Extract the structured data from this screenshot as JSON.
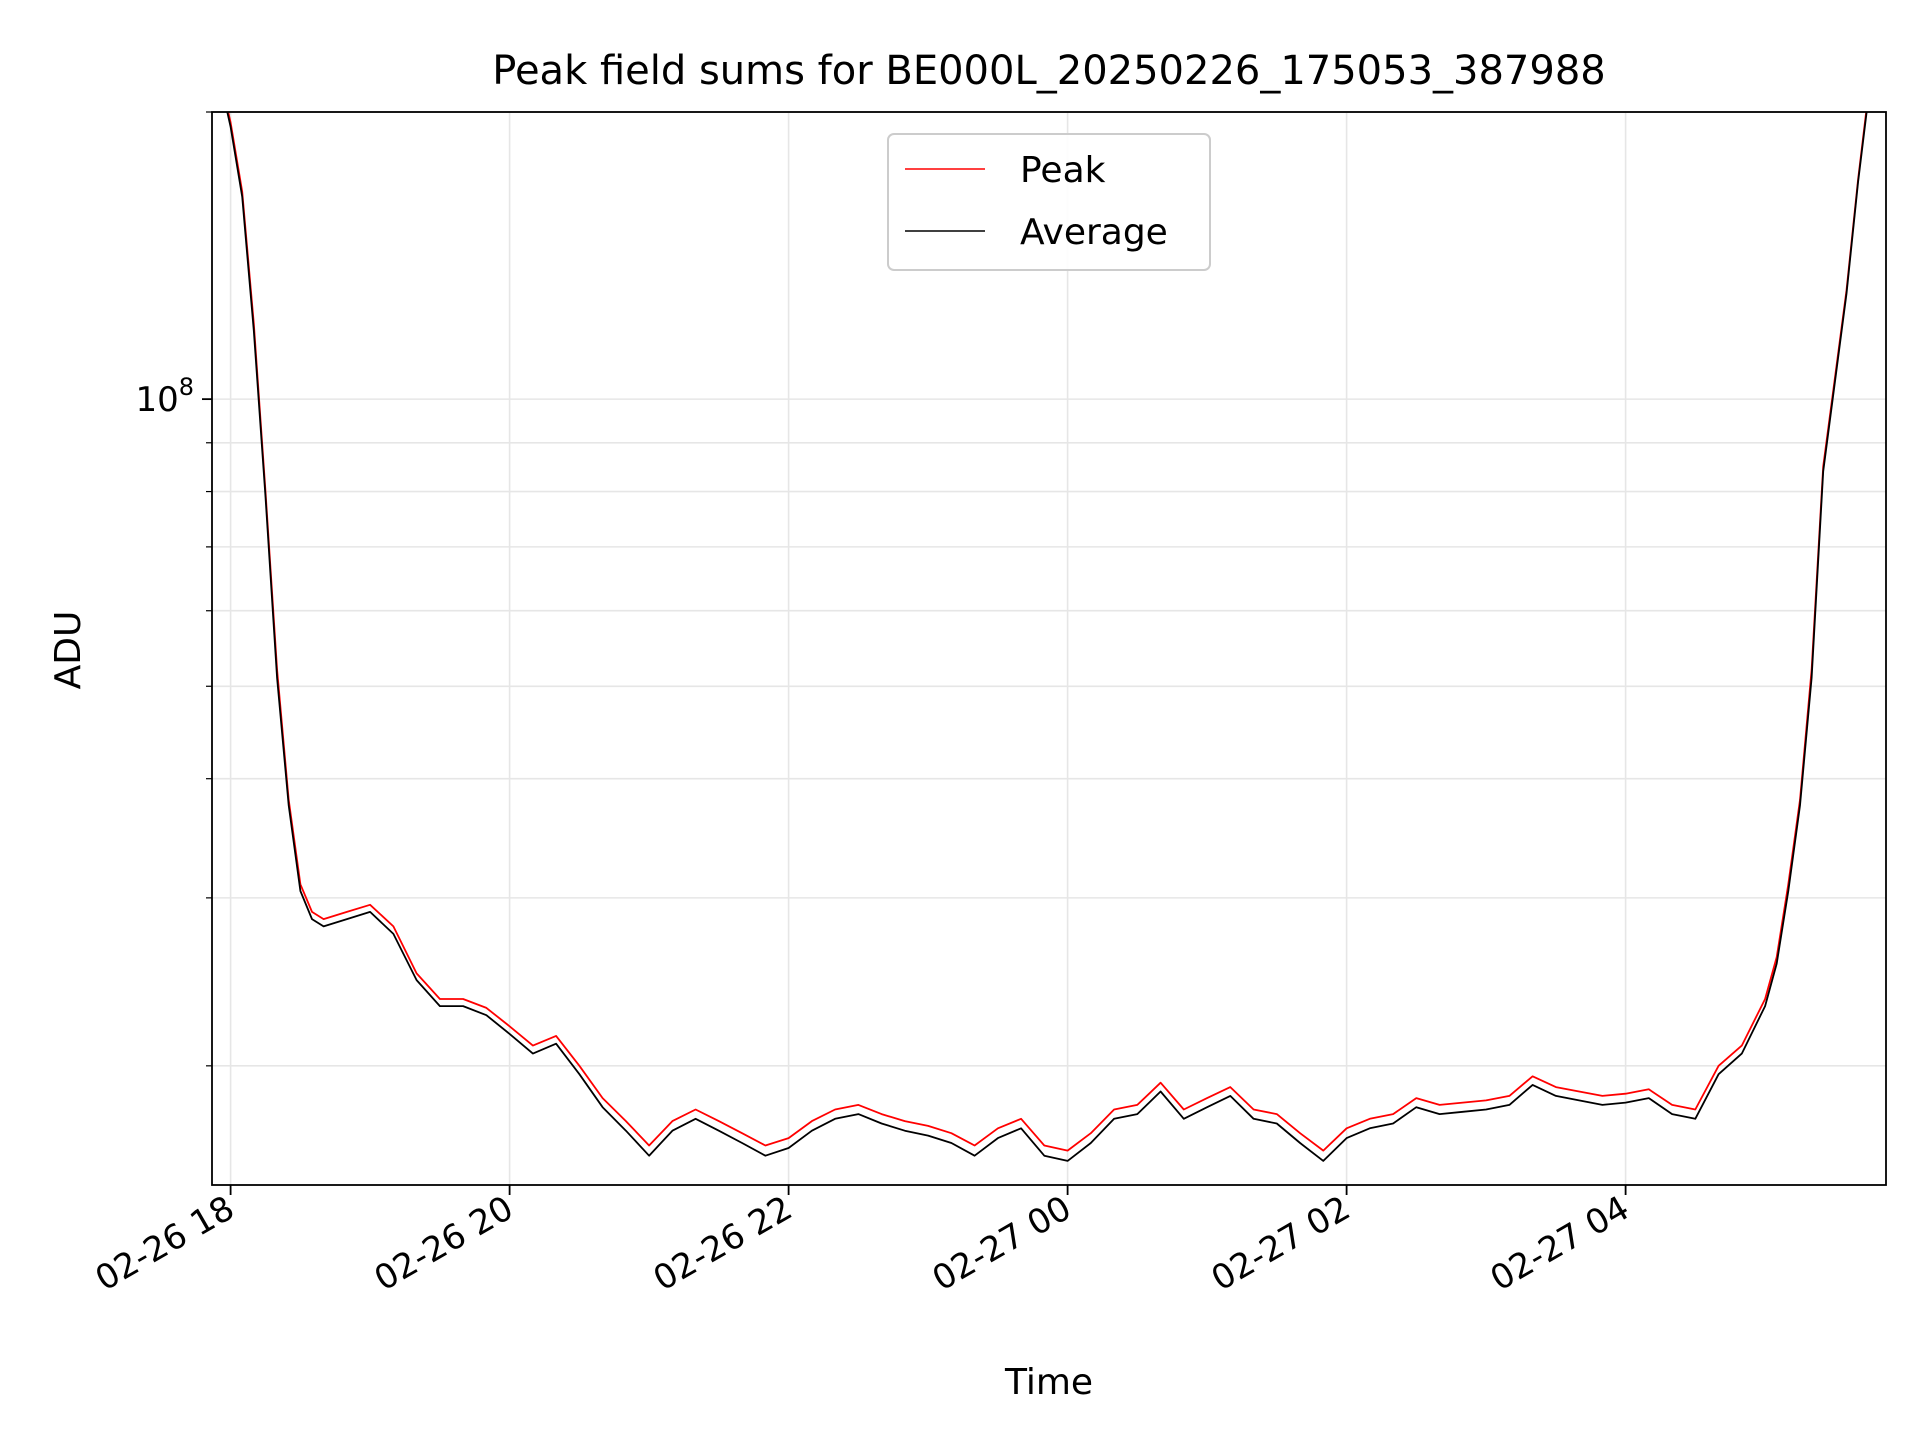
{
  "chart_data": {
    "type": "line",
    "title": "Peak field sums for BE000L_20250226_175053_387988",
    "xlabel": "Time",
    "ylabel": "ADU",
    "y_scale": "log",
    "ylim": [
      15000000,
      200000000
    ],
    "xlim": [
      "2025-02-26T17:52",
      "2025-02-27T05:52"
    ],
    "x_tick_labels": [
      "02-26 18",
      "02-26 20",
      "02-26 22",
      "02-27 00",
      "02-27 02",
      "02-27 04"
    ],
    "x_ticks": [
      "2025-02-26T18:00",
      "2025-02-26T20:00",
      "2025-02-26T22:00",
      "2025-02-27T00:00",
      "2025-02-27T02:00",
      "2025-02-27T04:00"
    ],
    "y_tick_labels": [
      {
        "base": "10",
        "exp": "8"
      }
    ],
    "y_ticks": [
      100000000
    ],
    "grid": true,
    "legend_position": "top-center",
    "series": [
      {
        "name": "Peak",
        "color": "#ff0000",
        "x": [
          "2025-02-26T17:58",
          "2025-02-26T18:00",
          "2025-02-26T18:05",
          "2025-02-26T18:10",
          "2025-02-26T18:15",
          "2025-02-26T18:20",
          "2025-02-26T18:25",
          "2025-02-26T18:30",
          "2025-02-26T18:35",
          "2025-02-26T18:40",
          "2025-02-26T18:50",
          "2025-02-26T19:00",
          "2025-02-26T19:10",
          "2025-02-26T19:20",
          "2025-02-26T19:30",
          "2025-02-26T19:40",
          "2025-02-26T19:50",
          "2025-02-26T20:00",
          "2025-02-26T20:10",
          "2025-02-26T20:20",
          "2025-02-26T20:30",
          "2025-02-26T20:40",
          "2025-02-26T20:50",
          "2025-02-26T21:00",
          "2025-02-26T21:10",
          "2025-02-26T21:20",
          "2025-02-26T21:30",
          "2025-02-26T21:40",
          "2025-02-26T21:50",
          "2025-02-26T22:00",
          "2025-02-26T22:10",
          "2025-02-26T22:20",
          "2025-02-26T22:30",
          "2025-02-26T22:40",
          "2025-02-26T22:50",
          "2025-02-26T23:00",
          "2025-02-26T23:10",
          "2025-02-26T23:20",
          "2025-02-26T23:30",
          "2025-02-26T23:40",
          "2025-02-26T23:50",
          "2025-02-27T00:00",
          "2025-02-27T00:10",
          "2025-02-27T00:20",
          "2025-02-27T00:30",
          "2025-02-27T00:40",
          "2025-02-27T00:50",
          "2025-02-27T01:00",
          "2025-02-27T01:10",
          "2025-02-27T01:20",
          "2025-02-27T01:30",
          "2025-02-27T01:40",
          "2025-02-27T01:50",
          "2025-02-27T02:00",
          "2025-02-27T02:10",
          "2025-02-27T02:20",
          "2025-02-27T02:30",
          "2025-02-27T02:40",
          "2025-02-27T02:50",
          "2025-02-27T03:00",
          "2025-02-27T03:10",
          "2025-02-27T03:20",
          "2025-02-27T03:30",
          "2025-02-27T03:40",
          "2025-02-27T03:50",
          "2025-02-27T04:00",
          "2025-02-27T04:10",
          "2025-02-27T04:20",
          "2025-02-27T04:30",
          "2025-02-27T04:40",
          "2025-02-27T04:50",
          "2025-02-27T05:00",
          "2025-02-27T05:05",
          "2025-02-27T05:10",
          "2025-02-27T05:15",
          "2025-02-27T05:20",
          "2025-02-27T05:25",
          "2025-02-27T05:30",
          "2025-02-27T05:35",
          "2025-02-27T05:40",
          "2025-02-27T05:44"
        ],
        "values": [
          205000000,
          195000000,
          165000000,
          120000000,
          80000000,
          52000000,
          38000000,
          31000000,
          29000000,
          28500000,
          29000000,
          29500000,
          28000000,
          25000000,
          23500000,
          23500000,
          23000000,
          22000000,
          21000000,
          21500000,
          20000000,
          18500000,
          17500000,
          16500000,
          17500000,
          18000000,
          17500000,
          17000000,
          16500000,
          16800000,
          17500000,
          18000000,
          18200000,
          17800000,
          17500000,
          17300000,
          17000000,
          16500000,
          17200000,
          17600000,
          16500000,
          16300000,
          17000000,
          18000000,
          18200000,
          19200000,
          18000000,
          18500000,
          19000000,
          18000000,
          17800000,
          17000000,
          16300000,
          17200000,
          17600000,
          17800000,
          18500000,
          18200000,
          18300000,
          18400000,
          18600000,
          19500000,
          19000000,
          18800000,
          18600000,
          18700000,
          18900000,
          18200000,
          18000000,
          20000000,
          21000000,
          23500000,
          26000000,
          31000000,
          38000000,
          52000000,
          85000000,
          105000000,
          130000000,
          170000000,
          205000000
        ]
      },
      {
        "name": "Average",
        "color": "#000000",
        "x": [
          "2025-02-26T17:58",
          "2025-02-26T18:00",
          "2025-02-26T18:05",
          "2025-02-26T18:10",
          "2025-02-26T18:15",
          "2025-02-26T18:20",
          "2025-02-26T18:25",
          "2025-02-26T18:30",
          "2025-02-26T18:35",
          "2025-02-26T18:40",
          "2025-02-26T18:50",
          "2025-02-26T19:00",
          "2025-02-26T19:10",
          "2025-02-26T19:20",
          "2025-02-26T19:30",
          "2025-02-26T19:40",
          "2025-02-26T19:50",
          "2025-02-26T20:00",
          "2025-02-26T20:10",
          "2025-02-26T20:20",
          "2025-02-26T20:30",
          "2025-02-26T20:40",
          "2025-02-26T20:50",
          "2025-02-26T21:00",
          "2025-02-26T21:10",
          "2025-02-26T21:20",
          "2025-02-26T21:30",
          "2025-02-26T21:40",
          "2025-02-26T21:50",
          "2025-02-26T22:00",
          "2025-02-26T22:10",
          "2025-02-26T22:20",
          "2025-02-26T22:30",
          "2025-02-26T22:40",
          "2025-02-26T22:50",
          "2025-02-26T23:00",
          "2025-02-26T23:10",
          "2025-02-26T23:20",
          "2025-02-26T23:30",
          "2025-02-26T23:40",
          "2025-02-26T23:50",
          "2025-02-27T00:00",
          "2025-02-27T00:10",
          "2025-02-27T00:20",
          "2025-02-27T00:30",
          "2025-02-27T00:40",
          "2025-02-27T00:50",
          "2025-02-27T01:00",
          "2025-02-27T01:10",
          "2025-02-27T01:20",
          "2025-02-27T01:30",
          "2025-02-27T01:40",
          "2025-02-27T01:50",
          "2025-02-27T02:00",
          "2025-02-27T02:10",
          "2025-02-27T02:20",
          "2025-02-27T02:30",
          "2025-02-27T02:40",
          "2025-02-27T02:50",
          "2025-02-27T03:00",
          "2025-02-27T03:10",
          "2025-02-27T03:20",
          "2025-02-27T03:30",
          "2025-02-27T03:40",
          "2025-02-27T03:50",
          "2025-02-27T04:00",
          "2025-02-27T04:10",
          "2025-02-27T04:20",
          "2025-02-27T04:30",
          "2025-02-27T04:40",
          "2025-02-27T04:50",
          "2025-02-27T05:00",
          "2025-02-27T05:05",
          "2025-02-27T05:10",
          "2025-02-27T05:15",
          "2025-02-27T05:20",
          "2025-02-27T05:25",
          "2025-02-27T05:30",
          "2025-02-27T05:35",
          "2025-02-27T05:40",
          "2025-02-27T05:44"
        ],
        "values": [
          203000000,
          193000000,
          163000000,
          118000000,
          79000000,
          51000000,
          37500000,
          30500000,
          28500000,
          28000000,
          28500000,
          29000000,
          27500000,
          24600000,
          23100000,
          23100000,
          22600000,
          21600000,
          20600000,
          21100000,
          19600000,
          18100000,
          17100000,
          16100000,
          17100000,
          17600000,
          17100000,
          16600000,
          16100000,
          16400000,
          17100000,
          17600000,
          17800000,
          17400000,
          17100000,
          16900000,
          16600000,
          16100000,
          16800000,
          17200000,
          16100000,
          15900000,
          16600000,
          17600000,
          17800000,
          18800000,
          17600000,
          18100000,
          18600000,
          17600000,
          17400000,
          16600000,
          15900000,
          16800000,
          17200000,
          17400000,
          18100000,
          17800000,
          17900000,
          18000000,
          18200000,
          19100000,
          18600000,
          18400000,
          18200000,
          18300000,
          18500000,
          17800000,
          17600000,
          19600000,
          20600000,
          23100000,
          25600000,
          30500000,
          37500000,
          51000000,
          84000000,
          104000000,
          129000000,
          169000000,
          203000000
        ]
      }
    ]
  }
}
